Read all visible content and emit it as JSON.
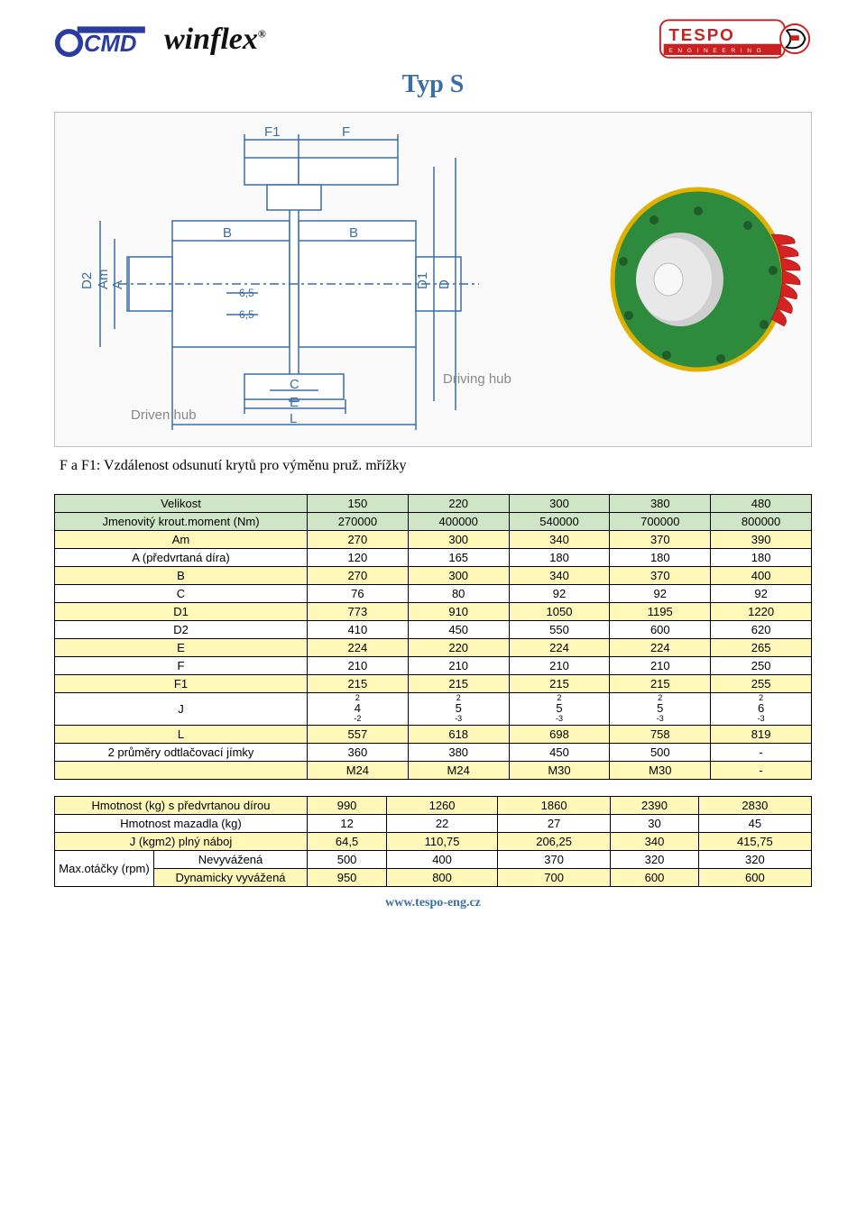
{
  "header": {
    "cmd": "CMD",
    "winflex": "winflex",
    "reg": "®",
    "tespo_top": "TESPO",
    "tespo_sub": "E N G I N E E R I N G"
  },
  "title": "Typ S",
  "drawing": {
    "labels": {
      "F1": "F1",
      "F": "F",
      "B": "B",
      "D1": "D1",
      "D": "D",
      "D2": "D2",
      "Am": "Am",
      "A": "A",
      "g65a": "6,5",
      "g65b": "6,5",
      "C": "C",
      "E": "E",
      "L": "L",
      "driven": "Driven hub",
      "driving": "Driving hub"
    },
    "colors": {
      "stroke": "#3b6ea5",
      "bg": "#fafafa"
    }
  },
  "render": {
    "colors": {
      "disc": "#2e8b3d",
      "fins": "#d62222",
      "hub": "#cfcfcf",
      "rim": "#e0b000"
    }
  },
  "caption": "F a F1: Vzdálenost odsunutí krytů pro výměnu pruž. mřížky",
  "table1": {
    "columns": [
      "150",
      "220",
      "300",
      "380",
      "480"
    ],
    "rows": [
      {
        "label": "Velikost",
        "vals": [
          "150",
          "220",
          "300",
          "380",
          "480"
        ],
        "cls": "hdr-green"
      },
      {
        "label": "Jmenovitý krout.moment (Nm)",
        "vals": [
          "270000",
          "400000",
          "540000",
          "700000",
          "800000"
        ],
        "cls": "hdr-green"
      },
      {
        "label": "Am",
        "vals": [
          "270",
          "300",
          "340",
          "370",
          "390"
        ],
        "cls": "row-yellow"
      },
      {
        "label": "A (předvrtaná díra)",
        "vals": [
          "120",
          "165",
          "180",
          "180",
          "180"
        ],
        "cls": "row-white"
      },
      {
        "label": "B",
        "vals": [
          "270",
          "300",
          "340",
          "370",
          "400"
        ],
        "cls": "row-yellow"
      },
      {
        "label": "C",
        "vals": [
          "76",
          "80",
          "92",
          "92",
          "92"
        ],
        "cls": "row-white"
      },
      {
        "label": "D1",
        "vals": [
          "773",
          "910",
          "1050",
          "1195",
          "1220"
        ],
        "cls": "row-yellow"
      },
      {
        "label": "D2",
        "vals": [
          "410",
          "450",
          "550",
          "600",
          "620"
        ],
        "cls": "row-white"
      },
      {
        "label": "E",
        "vals": [
          "224",
          "220",
          "224",
          "224",
          "265"
        ],
        "cls": "row-yellow"
      },
      {
        "label": "F",
        "vals": [
          "210",
          "210",
          "210",
          "210",
          "250"
        ],
        "cls": "row-white"
      },
      {
        "label": "F1",
        "vals": [
          "215",
          "215",
          "215",
          "215",
          "255"
        ],
        "cls": "row-yellow"
      }
    ],
    "j_row": {
      "label": "J",
      "sup": [
        "2",
        "2",
        "2",
        "2",
        "2"
      ],
      "mid": [
        "4",
        "5",
        "5",
        "5",
        "6"
      ],
      "sub": [
        "-2",
        "-3",
        "-3",
        "-3",
        "-3"
      ],
      "cls": "row-white"
    },
    "after_j": [
      {
        "label": "L",
        "vals": [
          "557",
          "618",
          "698",
          "758",
          "819"
        ],
        "cls": "row-yellow"
      },
      {
        "label": "2 průměry odtlačovací jímky",
        "vals": [
          "360",
          "380",
          "450",
          "500",
          "-"
        ],
        "cls": "row-white"
      },
      {
        "label": "",
        "vals": [
          "M24",
          "M24",
          "M30",
          "M30",
          "-"
        ],
        "cls": "row-yellow"
      }
    ]
  },
  "table2": {
    "rows": [
      {
        "label": "Hmotnost (kg) s předvrtanou dírou",
        "vals": [
          "990",
          "1260",
          "1860",
          "2390",
          "2830"
        ],
        "cls": "row-yellow",
        "span": 2
      },
      {
        "label": "Hmotnost mazadla (kg)",
        "vals": [
          "12",
          "22",
          "27",
          "30",
          "45"
        ],
        "cls": "row-white",
        "span": 2
      },
      {
        "label": "J (kgm2) plný náboj",
        "vals": [
          "64,5",
          "110,75",
          "206,25",
          "340",
          "415,75"
        ],
        "cls": "row-yellow",
        "span": 2
      }
    ],
    "rpm_group": {
      "left": "Max.otáčky (rpm)",
      "r1": {
        "label": "Nevyvážená",
        "vals": [
          "500",
          "400",
          "370",
          "320",
          "320"
        ],
        "cls": "row-white"
      },
      "r2": {
        "label": "Dynamicky vyvážená",
        "vals": [
          "950",
          "800",
          "700",
          "600",
          "600"
        ],
        "cls": "row-yellow"
      }
    }
  },
  "footer": "www.tespo-eng.cz"
}
